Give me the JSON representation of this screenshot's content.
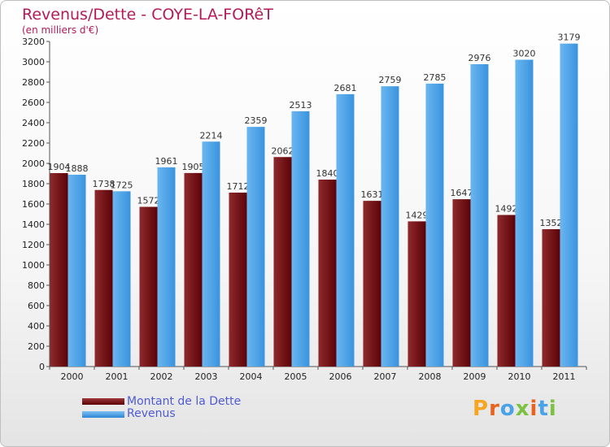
{
  "chart_data": {
    "type": "bar",
    "title": "Revenus/Dette - COYE-LA-FORêT",
    "subtitle": "(en milliers d'€)",
    "categories": [
      "2000",
      "2001",
      "2002",
      "2003",
      "2004",
      "2005",
      "2006",
      "2007",
      "2008",
      "2009",
      "2010",
      "2011"
    ],
    "series": [
      {
        "name": "Montant de la Dette",
        "color": "#7a0f12",
        "values": [
          1904,
          1738,
          1572,
          1905,
          1712,
          2062,
          1840,
          1631,
          1429,
          1647,
          1492,
          1352
        ]
      },
      {
        "name": "Revenus",
        "color": "#4aa3e8",
        "values": [
          1888,
          1725,
          1961,
          2214,
          2359,
          2513,
          2681,
          2759,
          2785,
          2976,
          3020,
          3179
        ]
      }
    ],
    "ylim": [
      0,
      3200
    ],
    "ytick_step": 200,
    "xlabel": "",
    "ylabel": "",
    "grid": false,
    "legend": "bottom-left"
  },
  "brand": {
    "text": "Proxiti",
    "colors": [
      "#f5a623",
      "#e8641e",
      "#4aa3e8",
      "#7cc242",
      "#e8641e",
      "#4aa3e8",
      "#7cc242"
    ]
  }
}
